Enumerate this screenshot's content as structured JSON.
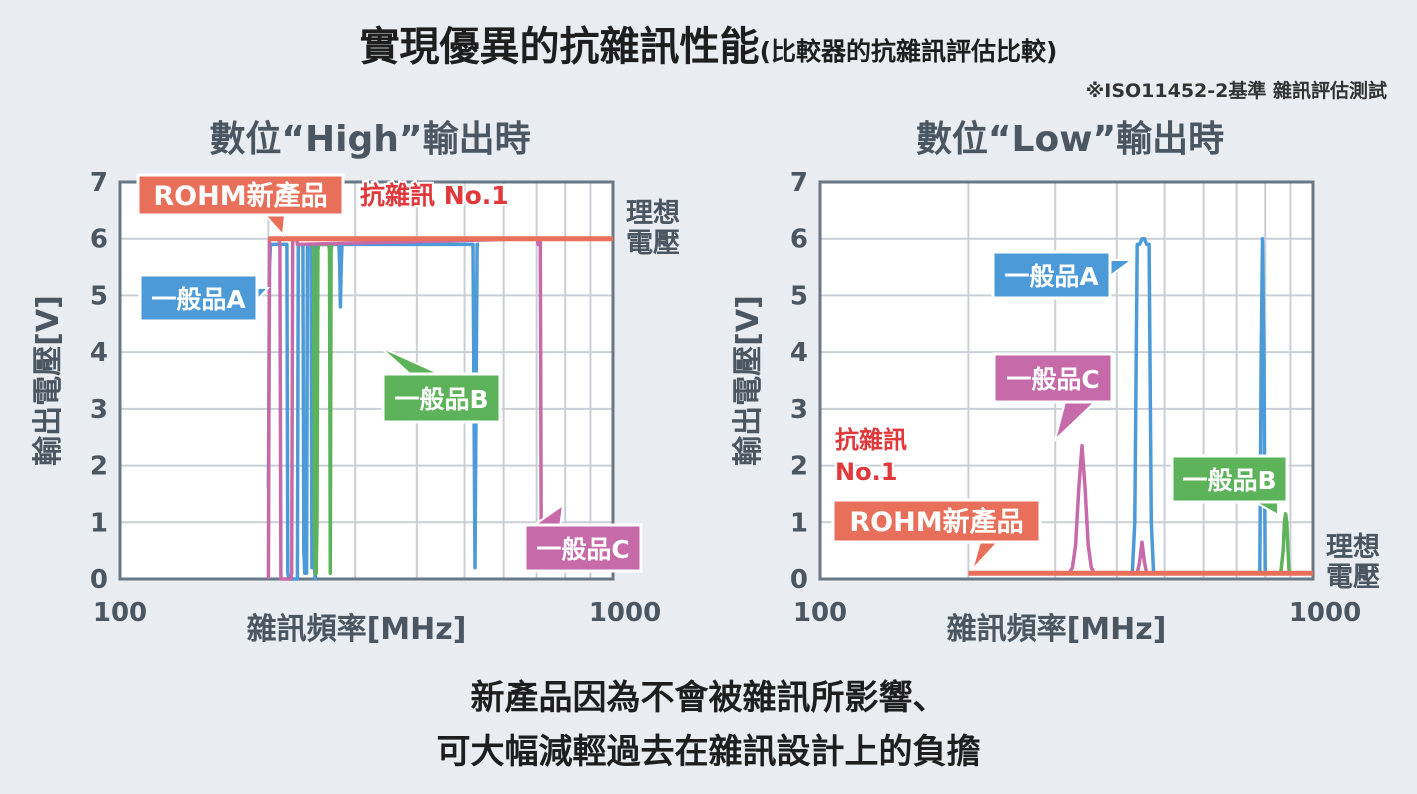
{
  "header": {
    "title": "實現優異的抗雜訊性能",
    "subtitle": "(比較器的抗雜訊評估比較)",
    "note": "※ISO11452-2基準 雜訊評估測試"
  },
  "footer": {
    "line1": "新產品因為不會被雜訊所影響、",
    "line2": "可大幅減輕過去在雜訊設計上的負擔"
  },
  "colors": {
    "rohm": "#e8705a",
    "a": "#4d9ad8",
    "b": "#5db35a",
    "c": "#c66aaa",
    "rohm_text": "#e0383b",
    "axis": "#6a7784",
    "grid": "#c9cfd5"
  },
  "chart_data": [
    {
      "type": "line",
      "title": "數位“High”輸出時",
      "xlabel": "雜訊頻率[MHz]",
      "ylabel": "輸出電壓[V]",
      "x_scale": "log",
      "xlim": [
        100,
        1000
      ],
      "ylim": [
        0,
        7
      ],
      "x_tick_labels": [
        "100",
        "1000"
      ],
      "y_ticks": [
        0,
        1,
        2,
        3,
        4,
        5,
        6,
        7
      ],
      "ideal_label": "理想電壓",
      "rohm_annotation": "抗雜訊 No.1",
      "series": [
        {
          "name": "ROHM新產品",
          "color_key": "rohm",
          "x": [
            200,
            1000
          ],
          "y": [
            6,
            6
          ]
        },
        {
          "name": "一般品A",
          "color_key": "a",
          "x": [
            200,
            201,
            202,
            218,
            219,
            220,
            222,
            229,
            230,
            231,
            235,
            236,
            237,
            239,
            240,
            241,
            244,
            245,
            248,
            249,
            250,
            253,
            254,
            256,
            260,
            270,
            278,
            279,
            280,
            281,
            282,
            285,
            490,
            495,
            500,
            505,
            510,
            515,
            520,
            525,
            530,
            535
          ],
          "y": [
            1.6,
            5.5,
            5.9,
            5.9,
            0.1,
            0.0,
            0.0,
            0.0,
            5.9,
            5.9,
            5.9,
            0.5,
            0.1,
            0.1,
            5.9,
            5.9,
            5.9,
            0.2,
            0.2,
            0.0,
            5.9,
            5.9,
            5.9,
            5.9,
            5.9,
            5.9,
            5.9,
            5.5,
            4.8,
            5.5,
            5.9,
            5.9,
            5.9,
            5.9,
            5.9,
            5.9,
            5.9,
            5.9,
            5.9,
            0.2,
            5.9,
            5.9
          ]
        },
        {
          "name": "一般品B",
          "color_key": "b",
          "x": [
            246,
            247,
            248,
            249,
            250,
            251,
            252,
            253,
            254,
            265,
            266,
            267,
            268,
            269
          ],
          "y": [
            5.9,
            5.8,
            1.0,
            0.1,
            0.1,
            1.0,
            5.8,
            5.9,
            5.9,
            5.9,
            5.8,
            0.1,
            5.8,
            5.9
          ]
        },
        {
          "name": "一般品C",
          "color_key": "c",
          "x": [
            200,
            201,
            202,
            210,
            211,
            212,
            215,
            220,
            222,
            223,
            224,
            225,
            228,
            229,
            230,
            231,
            232,
            700,
            702,
            705,
            710,
            712,
            715
          ],
          "y": [
            0.0,
            6.0,
            6.0,
            6.0,
            5.9,
            0.0,
            0.0,
            0.0,
            0.0,
            0.1,
            6.0,
            6.0,
            6.0,
            5.9,
            5.9,
            5.9,
            5.9,
            6.0,
            6.0,
            5.9,
            6.0,
            6.0,
            0.7
          ]
        }
      ],
      "labels": {
        "rohm": "ROHM新產品",
        "a": "一般品A",
        "b": "一般品B",
        "c": "一般品C"
      }
    },
    {
      "type": "line",
      "title": "數位“Low”輸出時",
      "xlabel": "雜訊頻率[MHz]",
      "ylabel": "輸出電壓[V]",
      "x_scale": "log",
      "xlim": [
        100,
        1000
      ],
      "ylim": [
        0,
        7
      ],
      "x_tick_labels": [
        "100",
        "1000"
      ],
      "y_ticks": [
        0,
        1,
        2,
        3,
        4,
        5,
        6,
        7
      ],
      "ideal_label": "理想電壓",
      "rohm_annotation": "抗雜訊\nNo.1",
      "series": [
        {
          "name": "ROHM新產品",
          "color_key": "rohm",
          "x": [
            200,
            1000
          ],
          "y": [
            0.1,
            0.1
          ]
        },
        {
          "name": "一般品A",
          "color_key": "a",
          "x": [
            430,
            435,
            440,
            445,
            450,
            455,
            460,
            465,
            470,
            475,
            480,
            780,
            785,
            790,
            795,
            800,
            805,
            810
          ],
          "y": [
            0.1,
            1.0,
            5.9,
            5.9,
            6.0,
            6.0,
            5.9,
            5.9,
            1.0,
            0.1,
            0.1,
            0.1,
            4.0,
            6.0,
            4.0,
            0.1,
            0.1,
            0.1
          ]
        },
        {
          "name": "一般品B",
          "color_key": "b",
          "x": [
            860,
            870,
            875,
            880,
            885,
            890,
            895
          ],
          "y": [
            0.1,
            0.5,
            1.0,
            1.15,
            1.0,
            0.5,
            0.1
          ]
        },
        {
          "name": "一般品C",
          "color_key": "c",
          "x": [
            320,
            325,
            330,
            335,
            340,
            345,
            350,
            355,
            360,
            440,
            445,
            450,
            455,
            460
          ],
          "y": [
            0.1,
            0.2,
            0.6,
            1.6,
            2.35,
            1.6,
            0.6,
            0.2,
            0.1,
            0.1,
            0.3,
            0.65,
            0.3,
            0.1
          ]
        }
      ],
      "labels": {
        "rohm": "ROHM新產品",
        "a": "一般品A",
        "b": "一般品B",
        "c": "一般品C"
      }
    }
  ]
}
